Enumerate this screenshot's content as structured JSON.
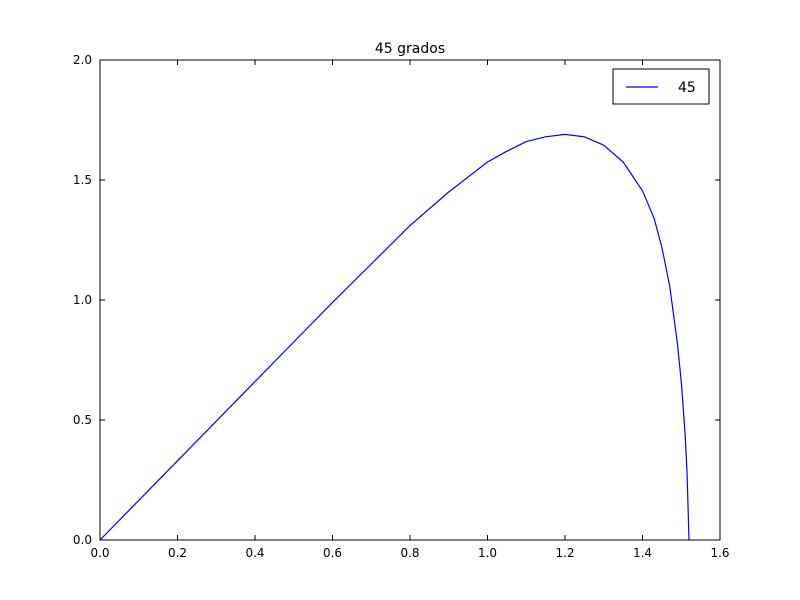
{
  "chart_data": {
    "type": "line",
    "title": "45 grados",
    "xlabel": "",
    "ylabel": "",
    "xlim": [
      0.0,
      1.6
    ],
    "ylim": [
      0.0,
      2.0
    ],
    "xticks": [
      "0.0",
      "0.2",
      "0.4",
      "0.6",
      "0.8",
      "1.0",
      "1.2",
      "1.4",
      "1.6"
    ],
    "yticks": [
      "0.0",
      "0.5",
      "1.0",
      "1.5",
      "2.0"
    ],
    "grid": false,
    "legend": "top-right",
    "series": [
      {
        "name": "45",
        "color": "#0000ff",
        "x": [
          0.0,
          0.1,
          0.2,
          0.3,
          0.4,
          0.5,
          0.6,
          0.7,
          0.8,
          0.9,
          1.0,
          1.05,
          1.1,
          1.15,
          1.2,
          1.25,
          1.3,
          1.35,
          1.4,
          1.43,
          1.45,
          1.47,
          1.49,
          1.5,
          1.51,
          1.515,
          1.52
        ],
        "y": [
          0.0,
          0.165,
          0.33,
          0.495,
          0.66,
          0.825,
          0.99,
          1.15,
          1.31,
          1.45,
          1.575,
          1.62,
          1.66,
          1.68,
          1.69,
          1.68,
          1.645,
          1.575,
          1.455,
          1.34,
          1.22,
          1.06,
          0.82,
          0.66,
          0.44,
          0.28,
          0.0
        ]
      }
    ]
  }
}
